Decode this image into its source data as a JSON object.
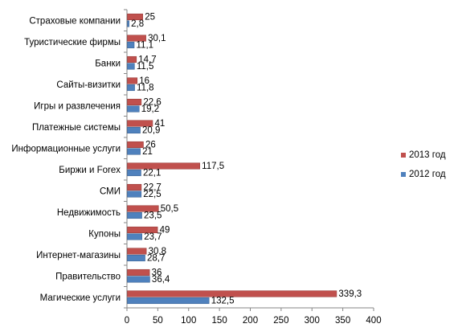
{
  "chart_data": {
    "type": "bar",
    "orientation": "horizontal",
    "categories": [
      "Страховые компании",
      "Туристические фирмы",
      "Банки",
      "Сайты-визитки",
      "Игры и развлечения",
      "Платежные системы",
      "Информационные услуги",
      "Биржи и Forex",
      "СМИ",
      "Недвижимость",
      "Купоны",
      "Интернет-магазины",
      "Правительство",
      "Магические услуги"
    ],
    "series": [
      {
        "name": "2013 год",
        "color": "#c0504d",
        "values": [
          25,
          30.1,
          14.7,
          16,
          22.6,
          41,
          26,
          117.5,
          22.7,
          50.5,
          49,
          30.8,
          36,
          339.3
        ],
        "labels": [
          "25",
          "30,1",
          "14,7",
          "16",
          "22,6",
          "41",
          "26",
          "117,5",
          "22,7",
          "50,5",
          "49",
          "30,8",
          "36",
          "339,3"
        ]
      },
      {
        "name": "2012 год",
        "color": "#4f81bd",
        "values": [
          2.8,
          11.1,
          11.5,
          11.8,
          19.2,
          20.9,
          21,
          22.1,
          22.5,
          23.5,
          23.7,
          28.7,
          36.4,
          132.5
        ],
        "labels": [
          "2,8",
          "11,1",
          "11,5",
          "11,8",
          "19,2",
          "20,9",
          "21",
          "22,1",
          "22,5",
          "23,5",
          "23,7",
          "28,7",
          "36,4",
          "132,5"
        ]
      }
    ],
    "xlim": [
      0,
      400
    ],
    "xticks": [
      "0",
      "50",
      "100",
      "150",
      "200",
      "250",
      "300",
      "350",
      "400"
    ],
    "grid": false,
    "legend_position": "right",
    "title": "",
    "xlabel": "",
    "ylabel": ""
  }
}
